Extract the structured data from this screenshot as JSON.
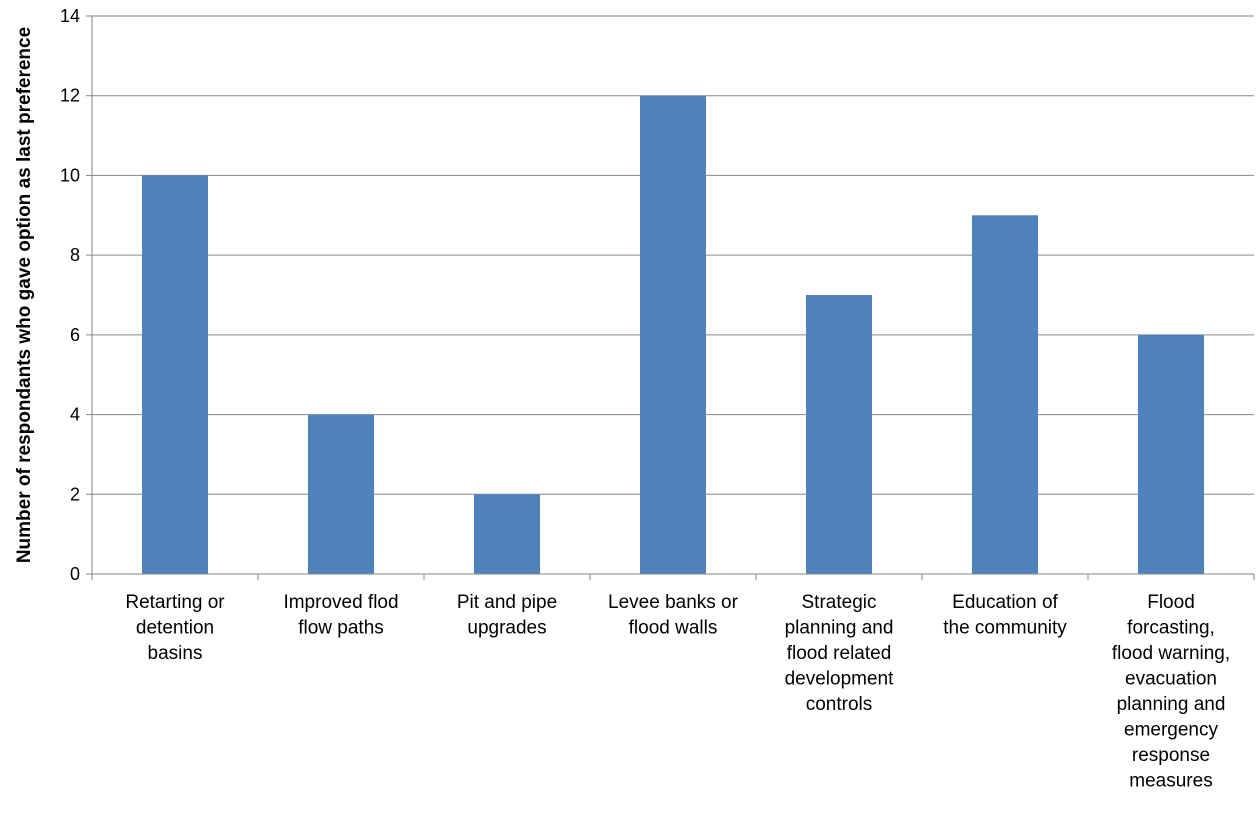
{
  "chart_data": {
    "type": "bar",
    "title": "",
    "xlabel": "",
    "ylabel": "Number of respondants who gave option as last preference",
    "ylim": [
      0,
      14
    ],
    "yticks": [
      0,
      2,
      4,
      6,
      8,
      10,
      12,
      14
    ],
    "grid": true,
    "legend": "none",
    "bar_color": "#4F81BD",
    "categories": [
      [
        "Retarting or",
        "detention",
        "basins"
      ],
      [
        "Improved flod",
        "flow paths"
      ],
      [
        "Pit and pipe",
        "upgrades"
      ],
      [
        "Levee banks or",
        "flood walls"
      ],
      [
        "Strategic",
        "planning and",
        "flood related",
        "development",
        "controls"
      ],
      [
        "Education of",
        "the community"
      ],
      [
        "Flood",
        "forcasting,",
        "flood warning,",
        "evacuation",
        "planning and",
        "emergency",
        "response",
        "measures"
      ]
    ],
    "values": [
      10,
      4,
      2,
      12,
      7,
      9,
      6
    ]
  }
}
